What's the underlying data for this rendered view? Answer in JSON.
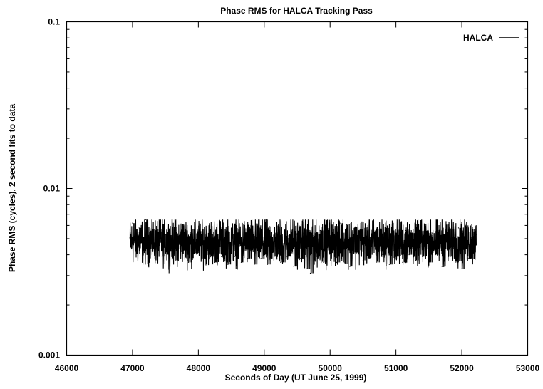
{
  "chart_data": {
    "type": "line",
    "title": "Phase RMS for HALCA Tracking Pass",
    "xlabel": "Seconds of Day (UT June 25, 1999)",
    "ylabel": "Phase RMS (cycles), 2 second fits to data",
    "xlim": [
      46000,
      53000
    ],
    "ylim": [
      0.001,
      0.1
    ],
    "y_scale": "log",
    "x_ticks": [
      46000,
      47000,
      48000,
      49000,
      50000,
      51000,
      52000,
      53000
    ],
    "x_tick_labels": [
      "46000",
      "47000",
      "48000",
      "49000",
      "50000",
      "51000",
      "52000",
      "53000"
    ],
    "y_ticks": [
      0.001,
      0.01,
      0.1
    ],
    "y_tick_labels": [
      "0.001",
      "0.01",
      "0.1"
    ],
    "grid": false,
    "legend_position": "top-right",
    "series": [
      {
        "name": "HALCA",
        "color": "#000000",
        "style": "solid",
        "x_start": 46960,
        "x_end": 52220,
        "typical_value": 0.0048,
        "approx_range": [
          0.0031,
          0.0065
        ],
        "points": [
          {
            "x": 46960,
            "y": 0.0051
          },
          {
            "x": 47000,
            "y": 0.0062
          },
          {
            "x": 47050,
            "y": 0.0044
          },
          {
            "x": 47100,
            "y": 0.0058
          },
          {
            "x": 47150,
            "y": 0.0041
          },
          {
            "x": 47200,
            "y": 0.0065
          },
          {
            "x": 47250,
            "y": 0.0046
          },
          {
            "x": 47300,
            "y": 0.0056
          },
          {
            "x": 47350,
            "y": 0.0042
          },
          {
            "x": 47400,
            "y": 0.0057
          },
          {
            "x": 47450,
            "y": 0.0039
          },
          {
            "x": 47500,
            "y": 0.0053
          },
          {
            "x": 47550,
            "y": 0.0044
          },
          {
            "x": 47600,
            "y": 0.0059
          },
          {
            "x": 47650,
            "y": 0.0037
          },
          {
            "x": 47700,
            "y": 0.0052
          },
          {
            "x": 47750,
            "y": 0.0042
          },
          {
            "x": 47800,
            "y": 0.0056
          },
          {
            "x": 47850,
            "y": 0.0036
          },
          {
            "x": 47900,
            "y": 0.005
          },
          {
            "x": 47950,
            "y": 0.0041
          },
          {
            "x": 48000,
            "y": 0.0054
          },
          {
            "x": 48050,
            "y": 0.0038
          },
          {
            "x": 48100,
            "y": 0.0051
          },
          {
            "x": 48150,
            "y": 0.004
          },
          {
            "x": 48200,
            "y": 0.0053
          },
          {
            "x": 48250,
            "y": 0.0036
          },
          {
            "x": 48300,
            "y": 0.0049
          },
          {
            "x": 48350,
            "y": 0.0039
          },
          {
            "x": 48400,
            "y": 0.0051
          },
          {
            "x": 48450,
            "y": 0.0035
          },
          {
            "x": 48500,
            "y": 0.0048
          },
          {
            "x": 48550,
            "y": 0.0039
          },
          {
            "x": 48600,
            "y": 0.0052
          },
          {
            "x": 48650,
            "y": 0.0036
          },
          {
            "x": 48700,
            "y": 0.005
          },
          {
            "x": 48750,
            "y": 0.0038
          },
          {
            "x": 48800,
            "y": 0.0053
          },
          {
            "x": 48850,
            "y": 0.0035
          },
          {
            "x": 48900,
            "y": 0.0049
          },
          {
            "x": 48950,
            "y": 0.0038
          },
          {
            "x": 49000,
            "y": 0.0052
          },
          {
            "x": 49050,
            "y": 0.0035
          },
          {
            "x": 49100,
            "y": 0.0051
          },
          {
            "x": 49150,
            "y": 0.0039
          },
          {
            "x": 49200,
            "y": 0.0054
          },
          {
            "x": 49250,
            "y": 0.0036
          },
          {
            "x": 49300,
            "y": 0.0052
          },
          {
            "x": 49350,
            "y": 0.0039
          },
          {
            "x": 49400,
            "y": 0.0055
          },
          {
            "x": 49450,
            "y": 0.0034
          },
          {
            "x": 49500,
            "y": 0.0053
          },
          {
            "x": 49550,
            "y": 0.0038
          },
          {
            "x": 49600,
            "y": 0.0054
          },
          {
            "x": 49650,
            "y": 0.0033
          },
          {
            "x": 49700,
            "y": 0.0031
          },
          {
            "x": 49750,
            "y": 0.0052
          },
          {
            "x": 49800,
            "y": 0.0039
          },
          {
            "x": 49850,
            "y": 0.0056
          },
          {
            "x": 49900,
            "y": 0.0036
          },
          {
            "x": 49950,
            "y": 0.0055
          },
          {
            "x": 50000,
            "y": 0.0041
          },
          {
            "x": 50050,
            "y": 0.0057
          },
          {
            "x": 50100,
            "y": 0.0036
          },
          {
            "x": 50150,
            "y": 0.0062
          },
          {
            "x": 50200,
            "y": 0.0043
          },
          {
            "x": 50250,
            "y": 0.0061
          },
          {
            "x": 50300,
            "y": 0.0034
          },
          {
            "x": 50350,
            "y": 0.0058
          },
          {
            "x": 50400,
            "y": 0.0041
          },
          {
            "x": 50450,
            "y": 0.0057
          },
          {
            "x": 50500,
            "y": 0.0037
          },
          {
            "x": 50550,
            "y": 0.0056
          },
          {
            "x": 50600,
            "y": 0.004
          },
          {
            "x": 50650,
            "y": 0.0055
          },
          {
            "x": 50700,
            "y": 0.0036
          },
          {
            "x": 50750,
            "y": 0.0057
          },
          {
            "x": 50800,
            "y": 0.004
          },
          {
            "x": 50850,
            "y": 0.0058
          },
          {
            "x": 50900,
            "y": 0.0035
          },
          {
            "x": 50950,
            "y": 0.0056
          },
          {
            "x": 51000,
            "y": 0.0039
          },
          {
            "x": 51050,
            "y": 0.0055
          },
          {
            "x": 51100,
            "y": 0.0036
          },
          {
            "x": 51150,
            "y": 0.0056
          },
          {
            "x": 51200,
            "y": 0.004
          },
          {
            "x": 51250,
            "y": 0.0054
          },
          {
            "x": 51300,
            "y": 0.0037
          },
          {
            "x": 51350,
            "y": 0.0055
          },
          {
            "x": 51400,
            "y": 0.0039
          },
          {
            "x": 51450,
            "y": 0.0056
          },
          {
            "x": 51500,
            "y": 0.0036
          },
          {
            "x": 51550,
            "y": 0.0054
          },
          {
            "x": 51600,
            "y": 0.004
          },
          {
            "x": 51650,
            "y": 0.0056
          },
          {
            "x": 51700,
            "y": 0.0034
          },
          {
            "x": 51750,
            "y": 0.0055
          },
          {
            "x": 51800,
            "y": 0.0039
          },
          {
            "x": 51850,
            "y": 0.0057
          },
          {
            "x": 51900,
            "y": 0.0036
          },
          {
            "x": 51950,
            "y": 0.0058
          },
          {
            "x": 52000,
            "y": 0.0033
          },
          {
            "x": 52050,
            "y": 0.006
          },
          {
            "x": 52100,
            "y": 0.0038
          },
          {
            "x": 52150,
            "y": 0.0057
          },
          {
            "x": 52200,
            "y": 0.0042
          },
          {
            "x": 52220,
            "y": 0.0053
          }
        ]
      }
    ]
  }
}
